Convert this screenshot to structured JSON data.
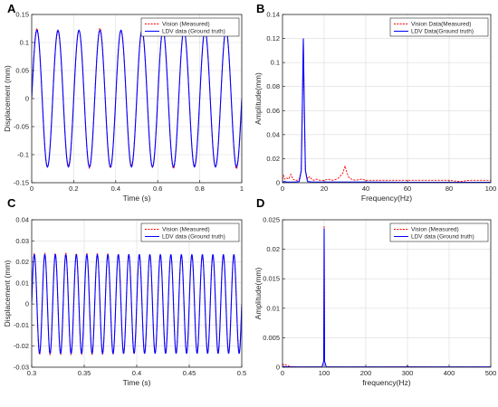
{
  "chart_data": [
    {
      "id": "A",
      "type": "line",
      "panel_label": "A",
      "title": "",
      "xlabel": "Time (s)",
      "ylabel": "Displacement (mm)",
      "xlim": [
        0,
        1
      ],
      "ylim": [
        -0.15,
        0.15
      ],
      "xticks": [
        "0",
        "0.2",
        "0.4",
        "0.6",
        "0.8",
        "1"
      ],
      "yticks": [
        "-0.15",
        "-0.1",
        "-0.05",
        "0",
        "0.05",
        "0.1",
        "0.15"
      ],
      "legend_position": "top-right",
      "signal": {
        "kind": "sine",
        "frequency_hz": 10,
        "amplitude_mm": 0.122,
        "samples": 400
      },
      "series": [
        {
          "name": "Vision (Measured)",
          "color": "#ff0000",
          "style": "dashed"
        },
        {
          "name": "LDV data (Ground truth)",
          "color": "#0000ff",
          "style": "solid"
        }
      ]
    },
    {
      "id": "B",
      "type": "line",
      "panel_label": "B",
      "title": "",
      "xlabel": "Frequency(Hz)",
      "ylabel": "Amplitude(mm)",
      "xlim": [
        0,
        100
      ],
      "ylim": [
        0,
        0.14
      ],
      "xticks": [
        "0",
        "20",
        "40",
        "60",
        "80",
        "100"
      ],
      "yticks": [
        "0",
        "0.02",
        "0.04",
        "0.06",
        "0.08",
        "0.1",
        "0.12",
        "0.14"
      ],
      "legend_position": "top-right",
      "series": [
        {
          "name": "Vision Data(Measured)",
          "color": "#ff0000",
          "style": "dashed",
          "x": [
            0,
            0.5,
            1,
            2,
            3,
            4,
            5,
            6,
            7,
            8,
            9,
            9.5,
            10,
            10.5,
            11,
            12,
            13,
            14,
            15,
            16,
            18,
            20,
            22,
            24,
            26,
            27,
            28,
            29,
            30,
            31,
            32,
            33,
            35,
            38,
            40,
            45,
            50,
            55,
            60,
            65,
            70,
            75,
            80,
            85,
            90,
            95,
            100
          ],
          "y": [
            0.003,
            0.006,
            0.003,
            0.004,
            0.003,
            0.007,
            0.003,
            0.002,
            0.002,
            0.003,
            0.01,
            0.06,
            0.12,
            0.06,
            0.01,
            0.003,
            0.005,
            0.003,
            0.002,
            0.003,
            0.002,
            0.002,
            0.003,
            0.002,
            0.003,
            0.004,
            0.006,
            0.008,
            0.014,
            0.008,
            0.004,
            0.003,
            0.002,
            0.003,
            0.002,
            0.002,
            0.002,
            0.002,
            0.002,
            0.002,
            0.002,
            0.002,
            0.002,
            0.001,
            0.002,
            0.002,
            0.002
          ]
        },
        {
          "name": "LDV Data(Ground truth)",
          "color": "#0000ff",
          "style": "solid",
          "x": [
            0,
            1,
            2,
            4,
            6,
            8,
            9,
            9.5,
            10,
            10.5,
            11,
            12,
            14,
            20,
            30,
            40,
            60,
            80,
            100
          ],
          "y": [
            0.0005,
            0.001,
            0.0005,
            0.0005,
            0.0005,
            0.001,
            0.01,
            0.06,
            0.12,
            0.06,
            0.01,
            0.001,
            0.0005,
            0.0005,
            0.0005,
            0.0005,
            0.0003,
            0.0003,
            0.0003
          ]
        }
      ]
    },
    {
      "id": "C",
      "type": "line",
      "panel_label": "C",
      "title": "",
      "xlabel": "Time (s)",
      "ylabel": "Displacement (mm)",
      "xlim": [
        0.3,
        0.5
      ],
      "ylim": [
        -0.03,
        0.04
      ],
      "xticks": [
        "0.3",
        "0.35",
        "0.4",
        "0.45",
        "0.5"
      ],
      "yticks": [
        "-0.03",
        "-0.02",
        "-0.01",
        "0",
        "0.01",
        "0.02",
        "0.03",
        "0.04"
      ],
      "legend_position": "top-right",
      "signal": {
        "kind": "sine",
        "frequency_hz": 100,
        "amplitude_mm": 0.0235,
        "samples": 600
      },
      "series": [
        {
          "name": "Vision (Measured)",
          "color": "#ff0000",
          "style": "dashed"
        },
        {
          "name": "LDV data (Ground truth)",
          "color": "#0000ff",
          "style": "solid"
        }
      ]
    },
    {
      "id": "D",
      "type": "line",
      "panel_label": "D",
      "title": "",
      "xlabel": "frequency(Hz)",
      "ylabel": "Amplitude(mm)",
      "xlim": [
        0,
        500
      ],
      "ylim": [
        0,
        0.025
      ],
      "xticks": [
        "0",
        "100",
        "200",
        "300",
        "400",
        "500"
      ],
      "yticks": [
        "0",
        "0.005",
        "0.01",
        "0.015",
        "0.02",
        "0.025"
      ],
      "legend_position": "top-right",
      "series": [
        {
          "name": "Vision (Measured)",
          "color": "#ff0000",
          "style": "dashed",
          "x": [
            0,
            3,
            6,
            10,
            15,
            20,
            30,
            40,
            60,
            80,
            95,
            99,
            100,
            101,
            105,
            120,
            150,
            200,
            250,
            300,
            350,
            400,
            450,
            500
          ],
          "y": [
            0.0006,
            0.0004,
            0.0005,
            0.0003,
            0.0002,
            0.0001,
            0.0001,
            5e-05,
            5e-05,
            5e-05,
            0.0001,
            0.001,
            0.024,
            0.001,
            0.0001,
            5e-05,
            5e-05,
            5e-05,
            5e-05,
            0.0001,
            5e-05,
            5e-05,
            5e-05,
            5e-05
          ]
        },
        {
          "name": "LDV data (Ground truth)",
          "color": "#0000ff",
          "style": "solid",
          "x": [
            0,
            20,
            40,
            80,
            95,
            99,
            100,
            101,
            105,
            150,
            200,
            250,
            298,
            300,
            302,
            350,
            400,
            450,
            500
          ],
          "y": [
            0.0001,
            5e-05,
            5e-05,
            5e-05,
            5e-05,
            0.001,
            0.0235,
            0.001,
            5e-05,
            5e-05,
            5e-05,
            5e-05,
            5e-05,
            0.0002,
            5e-05,
            5e-05,
            5e-05,
            5e-05,
            5e-05
          ]
        }
      ]
    }
  ]
}
